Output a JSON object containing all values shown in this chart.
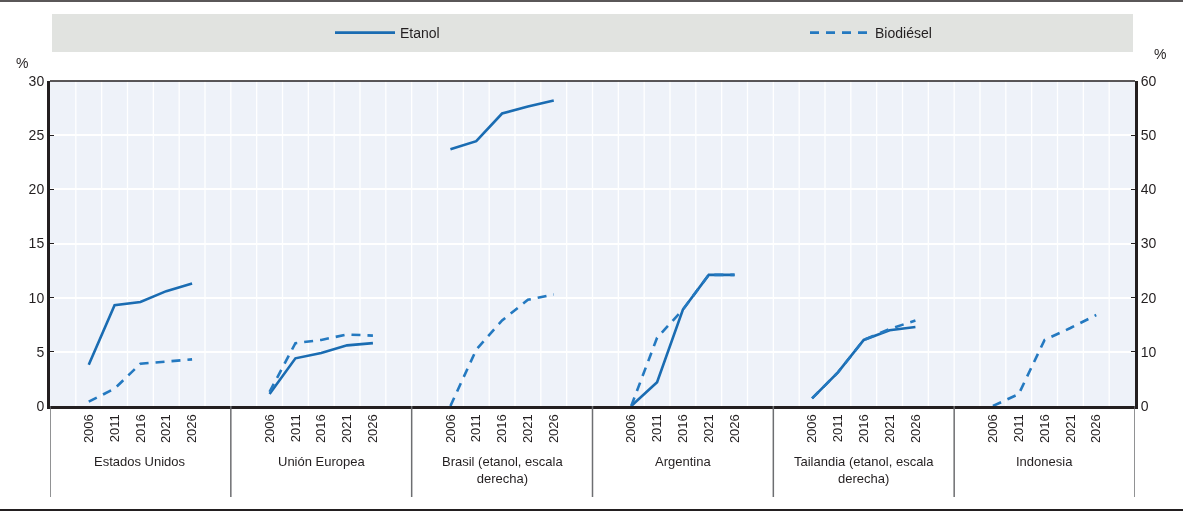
{
  "chart_data": {
    "type": "line",
    "categories": [
      null,
      "2006",
      "2011",
      "2016",
      "2021",
      "2026",
      null,
      null,
      "2006",
      "2011",
      "2016",
      "2021",
      "2026",
      null,
      null,
      "2006",
      "2011",
      "2016",
      "2021",
      "2026",
      null,
      null,
      "2006",
      "2011",
      "2016",
      "2021",
      "2026",
      null,
      null,
      "2006",
      "2011",
      "2016",
      "2021",
      "2026",
      null,
      null,
      "2006",
      "2011",
      "2016",
      "2021",
      "2026",
      null
    ],
    "series": [
      {
        "name": "Etanol",
        "color": "#1a6cb2",
        "line_style": "solid",
        "values": [
          null,
          3.8,
          9.3,
          9.6,
          10.6,
          11.3,
          null,
          null,
          1.1,
          4.4,
          4.9,
          5.6,
          5.8,
          null,
          null,
          null,
          null,
          null,
          null,
          null,
          null,
          null,
          0,
          2.2,
          8.9,
          12.1,
          12.1,
          null,
          null,
          null,
          null,
          null,
          null,
          null,
          null,
          null,
          null,
          null,
          null,
          null,
          null,
          null
        ]
      },
      {
        "color": "#1a6cb2",
        "line_style": "solid",
        "axis": "y2",
        "values": [
          null,
          null,
          null,
          null,
          null,
          null,
          null,
          null,
          null,
          null,
          null,
          null,
          null,
          null,
          null,
          47.4,
          48.9,
          54.0,
          55.3,
          56.4,
          null,
          null,
          null,
          null,
          null,
          null,
          null,
          null,
          null,
          1.4,
          6.2,
          12.2,
          14.0,
          14.6,
          null,
          null,
          null,
          null,
          null,
          null,
          null,
          null
        ]
      },
      {
        "name": "Biodiésel",
        "color": "#2479c0",
        "line_style": "dashed",
        "values": [
          null,
          0.4,
          1.6,
          3.9,
          4.1,
          4.3,
          null,
          null,
          1.3,
          5.8,
          6.1,
          6.6,
          6.5,
          null,
          null,
          0,
          5.2,
          7.9,
          9.8,
          10.3,
          null,
          null,
          0,
          6.3,
          8.9,
          12.1,
          12.1,
          null,
          null,
          0.7,
          3.1,
          6.1,
          7.1,
          7.9,
          null,
          null,
          0,
          1.1,
          6.1,
          7.2,
          8.4,
          null
        ]
      }
    ],
    "ylabel": "%",
    "y2label": "%",
    "ylim": [
      0,
      30
    ],
    "yticks": [
      0,
      5,
      10,
      15,
      20,
      25,
      30
    ],
    "y2lim": [
      0,
      60
    ],
    "y2ticks": [
      0,
      10,
      20,
      30,
      40,
      50,
      60
    ],
    "annotations": [
      "Estados Unidos",
      "Unión Europea",
      "Brasil (etanol, escala derecha)",
      "Argentina",
      "Tailandia (etanol, escala derecha)",
      "Indonesia"
    ],
    "grid": true,
    "legend": "top"
  }
}
